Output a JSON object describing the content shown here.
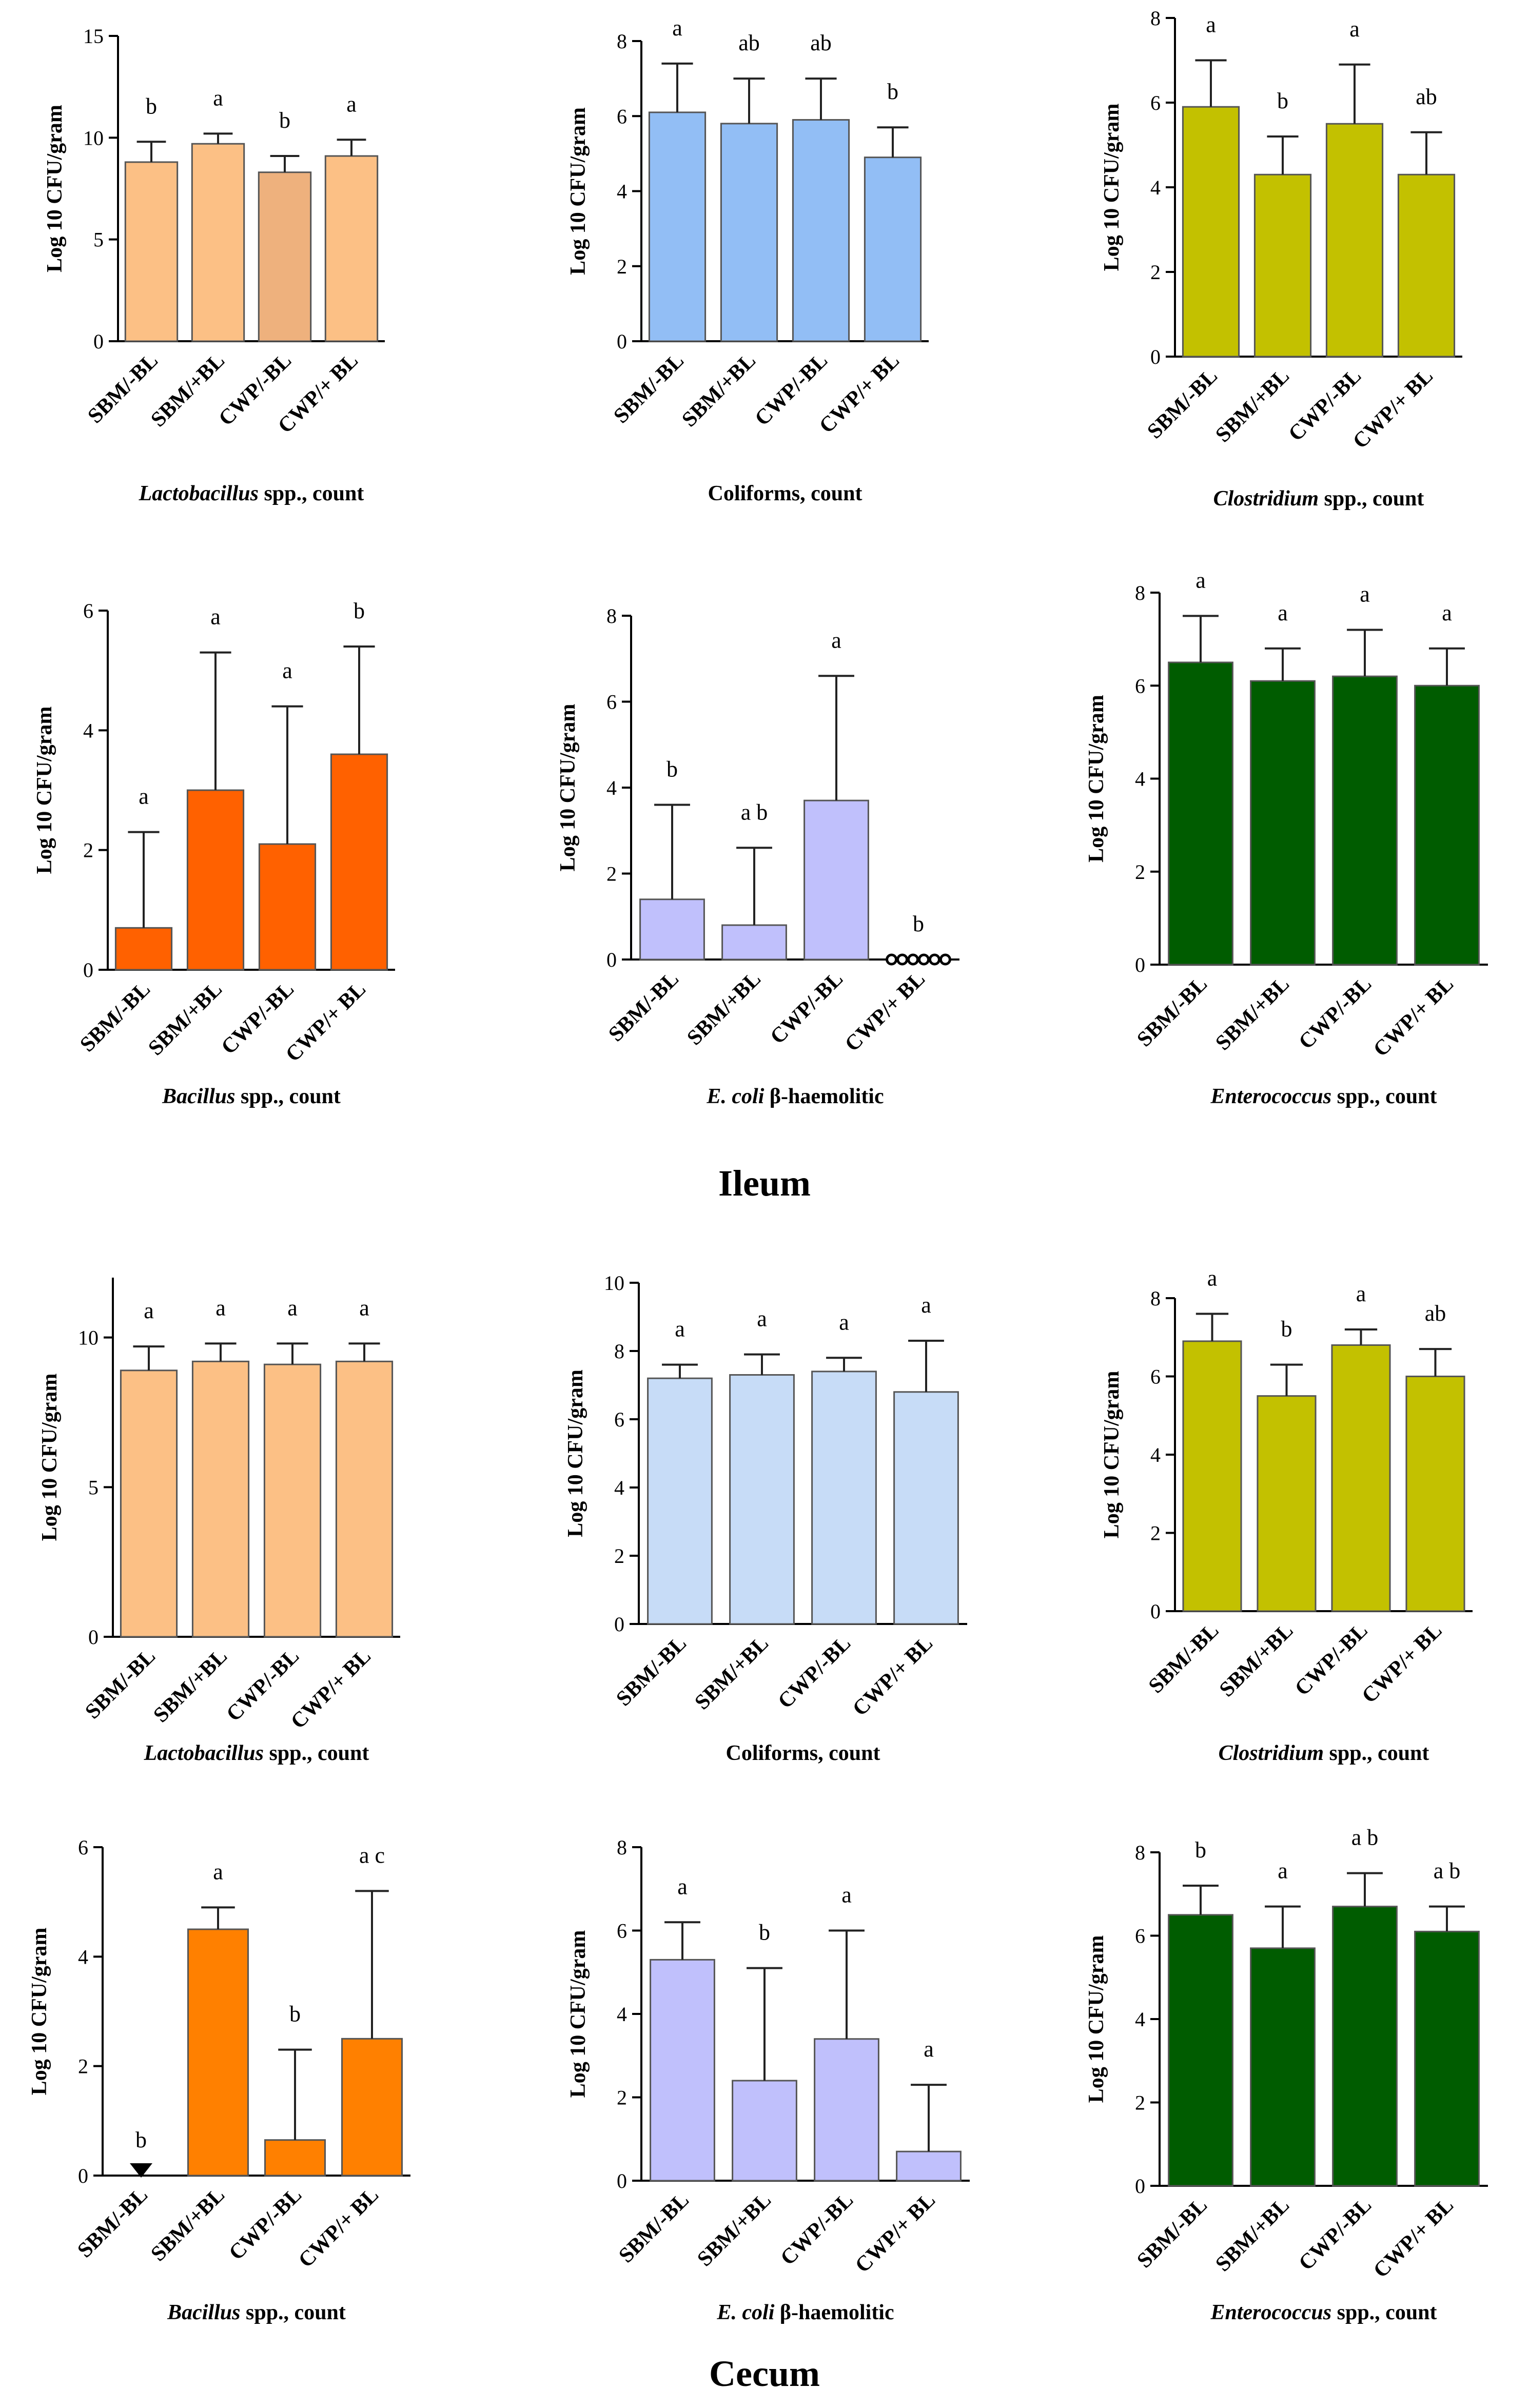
{
  "figure": {
    "sections": [
      "Ileum",
      "Cecum"
    ]
  },
  "chart_data": [
    {
      "type": "bar",
      "section": "Ileum",
      "title": "Lactobacillus spp., count",
      "title_italic": "Lactobacillus",
      "title_rest": " spp., count",
      "ylabel": "Log 10 CFU/gram",
      "ylim": [
        0,
        15
      ],
      "yticks": [
        0,
        5,
        10,
        15
      ],
      "categories": [
        "SBM/-BL",
        "SBM/+BL",
        "CWP/-BL",
        "CWP/+ BL"
      ],
      "values": [
        8.8,
        9.7,
        8.3,
        9.1
      ],
      "errors": [
        1.0,
        0.5,
        0.8,
        0.8
      ],
      "sig": [
        "b",
        "a",
        "b",
        "a"
      ],
      "colors": [
        "#fcc085",
        "#fcc085",
        "#eeb17d",
        "#fcc085"
      ]
    },
    {
      "type": "bar",
      "section": "Ileum",
      "title": "Coliforms, count",
      "title_italic": "",
      "title_rest": "Coliforms, count",
      "ylabel": "Log 10 CFU/gram",
      "ylim": [
        0,
        8
      ],
      "yticks": [
        0,
        2,
        4,
        6,
        8
      ],
      "categories": [
        "SBM/-BL",
        "SBM/+BL",
        "CWP/-BL",
        "CWP/+ BL"
      ],
      "values": [
        6.1,
        5.8,
        5.9,
        4.9
      ],
      "errors": [
        1.3,
        1.2,
        1.1,
        0.8
      ],
      "sig": [
        "a",
        "ab",
        "ab",
        "b"
      ],
      "colors": [
        "#92bef5",
        "#92bef5",
        "#92bef5",
        "#92bef5"
      ]
    },
    {
      "type": "bar",
      "section": "Ileum",
      "title": "Clostridium spp., count",
      "title_italic": "Clostridium",
      "title_rest": " spp., count",
      "ylabel": "Log 10 CFU/gram",
      "ylim": [
        0,
        8
      ],
      "yticks": [
        0,
        2,
        4,
        6,
        8
      ],
      "categories": [
        "SBM/-BL",
        "SBM/+BL",
        "CWP/-BL",
        "CWP/+ BL"
      ],
      "values": [
        5.9,
        4.3,
        5.5,
        4.3
      ],
      "errors": [
        1.1,
        0.9,
        1.4,
        1.0
      ],
      "sig": [
        "a",
        "b",
        "a",
        "ab"
      ],
      "colors": [
        "#c3c100",
        "#c3c100",
        "#c3c100",
        "#c3c100"
      ]
    },
    {
      "type": "bar",
      "section": "Ileum",
      "title": "Bacillus spp., count",
      "title_italic": "Bacillus",
      "title_rest": " spp., count",
      "ylabel": "Log 10 CFU/gram",
      "ylim": [
        0,
        6
      ],
      "yticks": [
        0,
        2,
        4,
        6
      ],
      "categories": [
        "SBM/-BL",
        "SBM/+BL",
        "CWP/-BL",
        "CWP/+ BL"
      ],
      "values": [
        0.7,
        3.0,
        2.1,
        3.6
      ],
      "errors": [
        1.6,
        2.3,
        2.3,
        1.8
      ],
      "sig": [
        "a",
        "a",
        "a",
        "b"
      ],
      "colors": [
        "#ff6100",
        "#ff6100",
        "#ff6100",
        "#ff6100"
      ]
    },
    {
      "type": "bar",
      "section": "Ileum",
      "title": "E. coli β-haemolitic",
      "title_italic": "E. coli",
      "title_rest": " β-haemolitic",
      "ylabel": "Log 10 CFU/gram",
      "ylim": [
        0,
        8
      ],
      "yticks": [
        0,
        2,
        4,
        6,
        8
      ],
      "categories": [
        "SBM/-BL",
        "SBM/+BL",
        "CWP/-BL",
        "CWP/+ BL"
      ],
      "values": [
        1.4,
        0.8,
        3.7,
        0.0
      ],
      "errors": [
        2.2,
        1.8,
        2.9,
        0.0
      ],
      "sig": [
        "b",
        "a b",
        "a",
        "b"
      ],
      "colors": [
        "#c0c0fc",
        "#c0c0fc",
        "#c0c0fc",
        "#c0c0fc"
      ],
      "zero_markers": "circles"
    },
    {
      "type": "bar",
      "section": "Ileum",
      "title": "Enterococcus spp., count",
      "title_italic": "Enterococcus",
      "title_rest": " spp., count",
      "ylabel": "Log 10 CFU/gram",
      "ylim": [
        0,
        8
      ],
      "yticks": [
        0,
        2,
        4,
        6,
        8
      ],
      "categories": [
        "SBM/-BL",
        "SBM/+BL",
        "CWP/-BL",
        "CWP/+ BL"
      ],
      "values": [
        6.5,
        6.1,
        6.2,
        6.0
      ],
      "errors": [
        1.0,
        0.7,
        1.0,
        0.8
      ],
      "sig": [
        "a",
        "a",
        "a",
        "a"
      ],
      "colors": [
        "#005c00",
        "#005c00",
        "#005c00",
        "#005c00"
      ]
    },
    {
      "type": "bar",
      "section": "Cecum",
      "title": "Lactobacillus spp., count",
      "title_italic": "Lactobacillus",
      "title_rest": " spp., count",
      "ylabel": "Log 10 CFU/gram",
      "ylim": [
        0,
        12
      ],
      "yticks": [
        0,
        5,
        10
      ],
      "categories": [
        "SBM/-BL",
        "SBM/+BL",
        "CWP/-BL",
        "CWP/+ BL"
      ],
      "values": [
        8.9,
        9.2,
        9.1,
        9.2
      ],
      "errors": [
        0.8,
        0.6,
        0.7,
        0.6
      ],
      "sig": [
        "a",
        "a",
        "a",
        "a"
      ],
      "colors": [
        "#fcc085",
        "#fcc085",
        "#fcc085",
        "#fcc085"
      ]
    },
    {
      "type": "bar",
      "section": "Cecum",
      "title": "Coliforms, count",
      "title_italic": "",
      "title_rest": "Coliforms, count",
      "ylabel": "Log 10 CFU/gram",
      "ylim": [
        0,
        10
      ],
      "yticks": [
        0,
        2,
        4,
        6,
        8,
        10
      ],
      "categories": [
        "SBM/-BL",
        "SBM/+BL",
        "CWP/-BL",
        "CWP/+ BL"
      ],
      "values": [
        7.2,
        7.3,
        7.4,
        6.8
      ],
      "errors": [
        0.4,
        0.6,
        0.4,
        1.5
      ],
      "sig": [
        "a",
        "a",
        "a",
        "a"
      ],
      "colors": [
        "#c7dcf7",
        "#c7dcf7",
        "#c7dcf7",
        "#c7dcf7"
      ]
    },
    {
      "type": "bar",
      "section": "Cecum",
      "title": "Clostridium spp., count",
      "title_italic": "Clostridium",
      "title_rest": " spp., count",
      "ylabel": "Log 10 CFU/gram",
      "ylim": [
        0,
        8
      ],
      "yticks": [
        0,
        2,
        4,
        6,
        8
      ],
      "categories": [
        "SBM/-BL",
        "SBM/+BL",
        "CWP/-BL",
        "CWP/+ BL"
      ],
      "values": [
        6.9,
        5.5,
        6.8,
        6.0
      ],
      "errors": [
        0.7,
        0.8,
        0.4,
        0.7
      ],
      "sig": [
        "a",
        "b",
        "a",
        "ab"
      ],
      "colors": [
        "#c3c100",
        "#c3c100",
        "#c3c100",
        "#c3c100"
      ]
    },
    {
      "type": "bar",
      "section": "Cecum",
      "title": "Bacillus spp., count",
      "title_italic": "Bacillus",
      "title_rest": " spp., count",
      "ylabel": "Log 10 CFU/gram",
      "ylim": [
        0,
        6
      ],
      "yticks": [
        0,
        2,
        4,
        6
      ],
      "categories": [
        "SBM/-BL",
        "SBM/+BL",
        "CWP/-BL",
        "CWP/+ BL"
      ],
      "values": [
        0.0,
        4.5,
        0.65,
        2.5
      ],
      "errors": [
        0.0,
        0.4,
        1.65,
        2.7
      ],
      "sig": [
        "b",
        "a",
        "b",
        "a c"
      ],
      "colors": [
        "#ff8000",
        "#ff8000",
        "#ff8000",
        "#ff8000"
      ],
      "zero_markers": "triangle"
    },
    {
      "type": "bar",
      "section": "Cecum",
      "title": "E. coli β-haemolitic",
      "title_italic": "E. coli",
      "title_rest": " β-haemolitic",
      "ylabel": "Log 10 CFU/gram",
      "ylim": [
        0,
        8
      ],
      "yticks": [
        0,
        2,
        4,
        6,
        8
      ],
      "categories": [
        "SBM/-BL",
        "SBM/+BL",
        "CWP/-BL",
        "CWP/+ BL"
      ],
      "values": [
        5.3,
        2.4,
        3.4,
        0.7
      ],
      "errors": [
        0.9,
        2.7,
        2.6,
        1.6
      ],
      "sig": [
        "a",
        "b",
        "a",
        "a"
      ],
      "colors": [
        "#c0c0fc",
        "#c0c0fc",
        "#c0c0fc",
        "#c0c0fc"
      ]
    },
    {
      "type": "bar",
      "section": "Cecum",
      "title": "Enterococcus spp., count",
      "title_italic": "Enterococcus",
      "title_rest": " spp., count",
      "ylabel": "Log 10 CFU/gram",
      "ylim": [
        0,
        8
      ],
      "yticks": [
        0,
        2,
        4,
        6,
        8
      ],
      "categories": [
        "SBM/-BL",
        "SBM/+BL",
        "CWP/-BL",
        "CWP/+ BL"
      ],
      "values": [
        6.5,
        5.7,
        6.7,
        6.1
      ],
      "errors": [
        0.7,
        1.0,
        0.8,
        0.6
      ],
      "sig": [
        "b",
        "a",
        "a b",
        "a b"
      ],
      "colors": [
        "#005c00",
        "#005c00",
        "#005c00",
        "#005c00"
      ]
    }
  ]
}
